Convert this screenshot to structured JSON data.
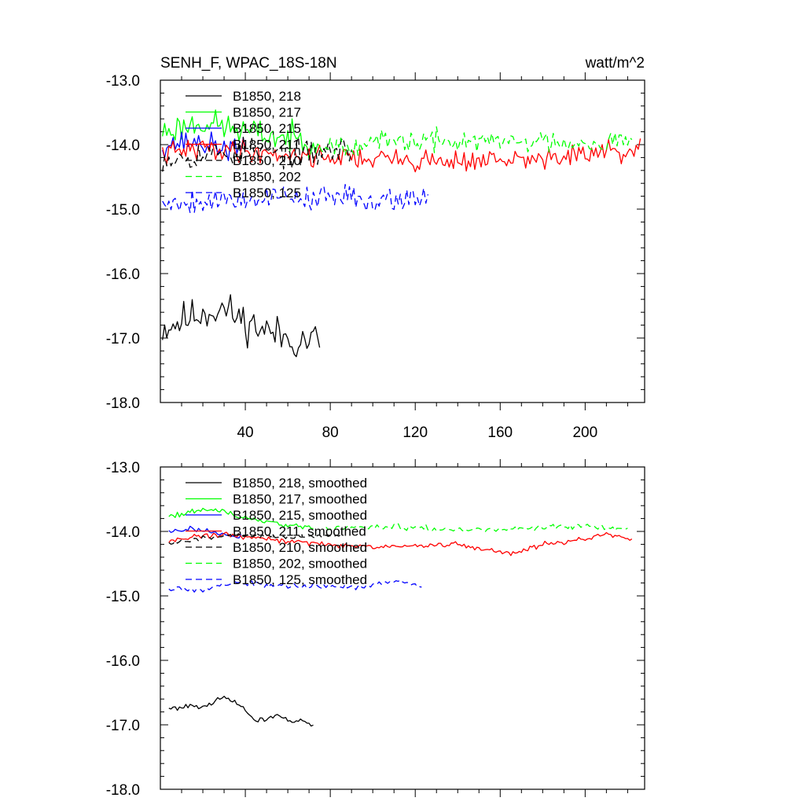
{
  "chart_data": [
    {
      "type": "line",
      "title": "SENH_F, WPAC_18S-18N",
      "units": "watt/m^2",
      "xlim": [
        0,
        228
      ],
      "ylim": [
        -18.0,
        -13.0
      ],
      "xticks": [
        40,
        80,
        120,
        160,
        200
      ],
      "xtick_labels": [
        "40",
        "80",
        "120",
        "160",
        "200"
      ],
      "yticks": [
        -13.0,
        -14.0,
        -15.0,
        -16.0,
        -17.0,
        -18.0
      ],
      "ytick_labels": [
        "-13.0",
        "-14.0",
        "-15.0",
        "-16.0",
        "-17.0",
        "-18.0"
      ],
      "series": [
        {
          "name": "B1850, 218",
          "color": "#000000",
          "dash": "solid",
          "x_start": 1,
          "x_end": 75,
          "base": -16.8,
          "trend": [
            [
              1,
              -16.85
            ],
            [
              20,
              -16.6
            ],
            [
              30,
              -16.55
            ],
            [
              40,
              -16.75
            ],
            [
              55,
              -16.95
            ],
            [
              65,
              -17.05
            ],
            [
              75,
              -17.0
            ]
          ],
          "noise": 0.22,
          "seed": 11
        },
        {
          "name": "B1850, 217",
          "color": "#00ff00",
          "dash": "solid",
          "x_start": 1,
          "x_end": 75,
          "base": -13.75,
          "trend": [
            [
              1,
              -13.8
            ],
            [
              20,
              -13.65
            ],
            [
              40,
              -13.8
            ],
            [
              60,
              -13.9
            ],
            [
              75,
              -13.95
            ]
          ],
          "noise": 0.17,
          "seed": 23
        },
        {
          "name": "B1850, 215",
          "color": "#0000ff",
          "dash": "solid",
          "x_start": 1,
          "x_end": 40,
          "base": -14.05,
          "trend": [
            [
              1,
              -14.0
            ],
            [
              15,
              -13.95
            ],
            [
              30,
              -14.05
            ],
            [
              40,
              -14.1
            ]
          ],
          "noise": 0.14,
          "seed": 37
        },
        {
          "name": "B1850, 211",
          "color": "#ff0000",
          "dash": "solid",
          "x_start": 1,
          "x_end": 226,
          "base": -14.15,
          "trend": [
            [
              1,
              -14.15
            ],
            [
              20,
              -14.05
            ],
            [
              60,
              -14.15
            ],
            [
              120,
              -14.25
            ],
            [
              170,
              -14.25
            ],
            [
              200,
              -14.15
            ],
            [
              226,
              -14.1
            ]
          ],
          "noise": 0.13,
          "seed": 41
        },
        {
          "name": "B1850, 210",
          "color": "#000000",
          "dash": "dashed",
          "x_start": 1,
          "x_end": 90,
          "base": -14.1,
          "trend": [
            [
              1,
              -14.2
            ],
            [
              40,
              -14.1
            ],
            [
              70,
              -14.15
            ],
            [
              90,
              -14.05
            ]
          ],
          "noise": 0.16,
          "seed": 53
        },
        {
          "name": "B1850, 202",
          "color": "#00ff00",
          "dash": "dashed",
          "x_start": 75,
          "x_end": 222,
          "base": -13.95,
          "trend": [
            [
              75,
              -14.0
            ],
            [
              120,
              -13.95
            ],
            [
              170,
              -13.95
            ],
            [
              200,
              -13.95
            ],
            [
              222,
              -13.95
            ]
          ],
          "noise": 0.13,
          "seed": 67
        },
        {
          "name": "B1850, 125",
          "color": "#0000ff",
          "dash": "dashed",
          "x_start": 1,
          "x_end": 126,
          "base": -14.85,
          "trend": [
            [
              1,
              -14.9
            ],
            [
              30,
              -14.85
            ],
            [
              60,
              -14.8
            ],
            [
              100,
              -14.85
            ],
            [
              126,
              -14.8
            ]
          ],
          "noise": 0.15,
          "seed": 79
        }
      ]
    },
    {
      "type": "line",
      "title": "",
      "units": "",
      "xlim": [
        0,
        228
      ],
      "ylim": [
        -18.0,
        -13.0
      ],
      "xticks": [
        40,
        80,
        120,
        160,
        200
      ],
      "xtick_labels": [],
      "yticks": [
        -13.0,
        -14.0,
        -15.0,
        -16.0,
        -17.0,
        -18.0
      ],
      "ytick_labels": [
        "-13.0",
        "-14.0",
        "-15.0",
        "-16.0",
        "-17.0",
        "-18.0"
      ],
      "series": [
        {
          "name": "B1850, 218, smoothed",
          "color": "#000000",
          "dash": "solid",
          "x_start": 4,
          "x_end": 72,
          "base": -16.75,
          "trend": [
            [
              4,
              -16.75
            ],
            [
              15,
              -16.7
            ],
            [
              22,
              -16.7
            ],
            [
              30,
              -16.58
            ],
            [
              38,
              -16.7
            ],
            [
              45,
              -16.95
            ],
            [
              55,
              -16.85
            ],
            [
              62,
              -16.95
            ],
            [
              68,
              -16.95
            ],
            [
              72,
              -17.0
            ]
          ],
          "noise": 0.03,
          "seed": 101
        },
        {
          "name": "B1850, 217, smoothed",
          "color": "#00ff00",
          "dash": "solid",
          "x_start": 4,
          "x_end": 72,
          "base": -13.75,
          "trend": [
            [
              4,
              -13.75
            ],
            [
              15,
              -13.7
            ],
            [
              25,
              -13.65
            ],
            [
              35,
              -13.75
            ],
            [
              50,
              -13.85
            ],
            [
              60,
              -13.9
            ],
            [
              72,
              -13.95
            ]
          ],
          "noise": 0.03,
          "seed": 113
        },
        {
          "name": "B1850, 215, smoothed",
          "color": "#0000ff",
          "dash": "solid",
          "x_start": 4,
          "x_end": 38,
          "base": -14.0,
          "trend": [
            [
              4,
              -14.0
            ],
            [
              15,
              -13.95
            ],
            [
              25,
              -14.02
            ],
            [
              38,
              -14.08
            ]
          ],
          "noise": 0.03,
          "seed": 127
        },
        {
          "name": "B1850, 211, smoothed",
          "color": "#ff0000",
          "dash": "solid",
          "x_start": 4,
          "x_end": 222,
          "base": -14.15,
          "trend": [
            [
              4,
              -14.15
            ],
            [
              15,
              -14.08
            ],
            [
              30,
              -14.05
            ],
            [
              60,
              -14.15
            ],
            [
              100,
              -14.25
            ],
            [
              140,
              -14.2
            ],
            [
              165,
              -14.35
            ],
            [
              180,
              -14.2
            ],
            [
              200,
              -14.12
            ],
            [
              210,
              -14.05
            ],
            [
              222,
              -14.12
            ]
          ],
          "noise": 0.03,
          "seed": 131
        },
        {
          "name": "B1850, 210, smoothed",
          "color": "#000000",
          "dash": "dashed",
          "x_start": 4,
          "x_end": 86,
          "base": -14.1,
          "trend": [
            [
              4,
              -14.2
            ],
            [
              20,
              -14.1
            ],
            [
              40,
              -14.05
            ],
            [
              60,
              -14.1
            ],
            [
              86,
              -14.05
            ]
          ],
          "noise": 0.03,
          "seed": 139
        },
        {
          "name": "B1850, 202, smoothed",
          "color": "#00ff00",
          "dash": "dashed",
          "x_start": 78,
          "x_end": 220,
          "base": -13.95,
          "trend": [
            [
              78,
              -13.95
            ],
            [
              110,
              -13.92
            ],
            [
              140,
              -13.98
            ],
            [
              170,
              -13.95
            ],
            [
              200,
              -13.92
            ],
            [
              220,
              -13.97
            ]
          ],
          "noise": 0.03,
          "seed": 149
        },
        {
          "name": "B1850, 125, smoothed",
          "color": "#0000ff",
          "dash": "dashed",
          "x_start": 4,
          "x_end": 123,
          "base": -14.85,
          "trend": [
            [
              4,
              -14.88
            ],
            [
              20,
              -14.9
            ],
            [
              35,
              -14.8
            ],
            [
              60,
              -14.85
            ],
            [
              100,
              -14.85
            ],
            [
              112,
              -14.75
            ],
            [
              123,
              -14.85
            ]
          ],
          "noise": 0.03,
          "seed": 157
        }
      ]
    }
  ]
}
